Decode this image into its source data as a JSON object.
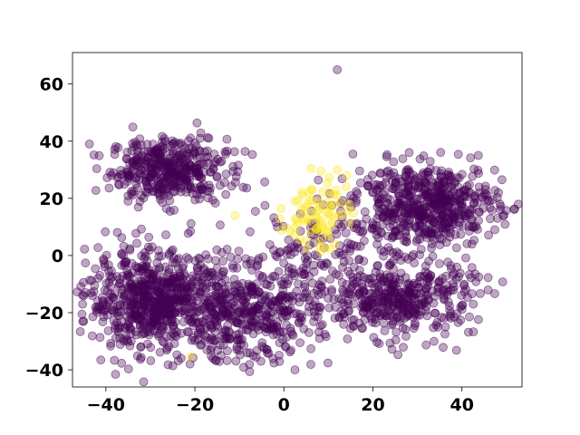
{
  "chart_data": {
    "type": "scatter",
    "title": "",
    "xlabel": "",
    "ylabel": "",
    "xlim": [
      -47.5,
      53.5
    ],
    "ylim": [
      -46,
      71
    ],
    "xticks": [
      -40,
      -20,
      0,
      20,
      40
    ],
    "yticks": [
      -40,
      -20,
      0,
      20,
      40,
      60
    ],
    "xtick_labels": [
      "−40",
      "−20",
      "0",
      "20",
      "40"
    ],
    "ytick_labels": [
      "−40",
      "−20",
      "0",
      "20",
      "40",
      "60"
    ],
    "grid": false,
    "legend": "none",
    "marker_alpha": 0.35,
    "series": [
      {
        "color": "#440154",
        "clusters": [
          {
            "cx": -26,
            "cy": 30,
            "sx": 6.5,
            "sy": 5.5,
            "n": 420
          },
          {
            "cx": -29,
            "cy": -16,
            "sx": 7.5,
            "sy": 8.5,
            "n": 700
          },
          {
            "cx": -8,
            "cy": -21,
            "sx": 7.5,
            "sy": 8.0,
            "n": 380
          },
          {
            "cx": 32,
            "cy": 18,
            "sx": 8.0,
            "sy": 7.0,
            "n": 560
          },
          {
            "cx": 27,
            "cy": -15,
            "sx": 8.0,
            "sy": 6.5,
            "n": 380
          },
          {
            "cx": 8,
            "cy": -5,
            "sx": 12.0,
            "sy": 12.0,
            "n": 220
          }
        ],
        "points": [
          [
            12,
            65
          ],
          [
            49,
            26.5
          ],
          [
            -45,
            -23
          ],
          [
            2.5,
            -40
          ],
          [
            8,
            -29
          ],
          [
            15.5,
            35.5
          ],
          [
            -25,
            39
          ],
          [
            48,
            13
          ],
          [
            3,
            4
          ]
        ]
      },
      {
        "color": "#fde725",
        "clusters": [
          {
            "cx": 7,
            "cy": 15,
            "sx": 3.5,
            "sy": 6.0,
            "n": 80
          }
        ],
        "points": [
          [
            -21,
            -35.5
          ],
          [
            12,
            30
          ],
          [
            -11,
            14
          ],
          [
            14,
            24
          ],
          [
            8,
            5
          ],
          [
            4,
            22
          ]
        ]
      }
    ]
  }
}
